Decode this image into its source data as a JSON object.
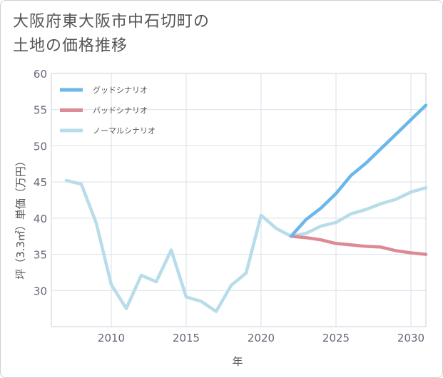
{
  "title_lines": [
    "大阪府東大阪市中石切町の",
    "土地の価格推移"
  ],
  "chart_data": {
    "type": "line",
    "xlabel": "年",
    "ylabel": "坪（3.3㎡）単価（万円）",
    "xlim": [
      2006,
      2031
    ],
    "ylim": [
      25,
      60
    ],
    "xticks": [
      2010,
      2015,
      2020,
      2025,
      2030
    ],
    "yticks": [
      30,
      35,
      40,
      45,
      50,
      55,
      60
    ],
    "grid": true,
    "legend_position": "top-left",
    "series": [
      {
        "name": "グッドシナリオ",
        "color": "#6ab7ea",
        "x": [
          2022,
          2023,
          2024,
          2025,
          2026,
          2027,
          2028,
          2029,
          2030,
          2031
        ],
        "y": [
          37.5,
          39.8,
          41.4,
          43.4,
          45.9,
          47.6,
          49.6,
          51.6,
          53.6,
          55.6
        ]
      },
      {
        "name": "バッドシナリオ",
        "color": "#dc8a94",
        "x": [
          2022,
          2023,
          2024,
          2025,
          2026,
          2027,
          2028,
          2029,
          2030,
          2031
        ],
        "y": [
          37.5,
          37.3,
          37.0,
          36.5,
          36.3,
          36.1,
          36.0,
          35.5,
          35.2,
          35.0
        ]
      },
      {
        "name": "ノーマルシナリオ",
        "color": "#b8dcea",
        "x": [
          2007,
          2008,
          2009,
          2010,
          2011,
          2012,
          2013,
          2014,
          2015,
          2016,
          2017,
          2018,
          2019,
          2020,
          2021,
          2022,
          2023,
          2024,
          2025,
          2026,
          2027,
          2028,
          2029,
          2030,
          2031
        ],
        "y": [
          45.2,
          44.7,
          39.3,
          30.8,
          27.5,
          32.1,
          31.2,
          35.6,
          29.1,
          28.5,
          27.1,
          30.7,
          32.4,
          40.4,
          38.6,
          37.5,
          37.9,
          38.9,
          39.4,
          40.6,
          41.2,
          42.0,
          42.6,
          43.6,
          44.2
        ]
      }
    ]
  }
}
